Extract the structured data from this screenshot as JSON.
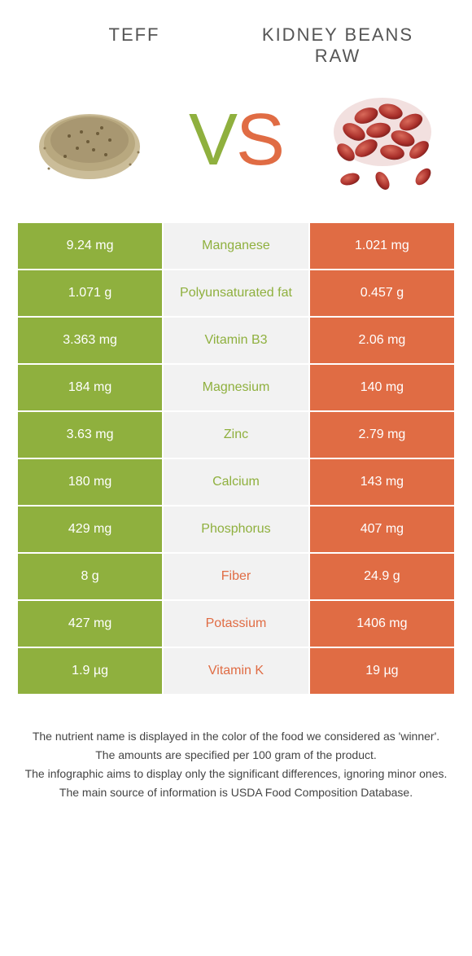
{
  "header": {
    "left_title": "TEFF",
    "right_title": "KIDNEY BEANS RAW"
  },
  "vs": {
    "v": "V",
    "s": "S"
  },
  "colors": {
    "left": "#8fb03e",
    "right": "#e06c44",
    "mid_bg": "#f2f2f2",
    "text": "#555555"
  },
  "rows": [
    {
      "nutrient": "Manganese",
      "left": "9.24 mg",
      "right": "1.021 mg",
      "winner": "left"
    },
    {
      "nutrient": "Polyunsaturated fat",
      "left": "1.071 g",
      "right": "0.457 g",
      "winner": "left"
    },
    {
      "nutrient": "Vitamin B3",
      "left": "3.363 mg",
      "right": "2.06 mg",
      "winner": "left"
    },
    {
      "nutrient": "Magnesium",
      "left": "184 mg",
      "right": "140 mg",
      "winner": "left"
    },
    {
      "nutrient": "Zinc",
      "left": "3.63 mg",
      "right": "2.79 mg",
      "winner": "left"
    },
    {
      "nutrient": "Calcium",
      "left": "180 mg",
      "right": "143 mg",
      "winner": "left"
    },
    {
      "nutrient": "Phosphorus",
      "left": "429 mg",
      "right": "407 mg",
      "winner": "left"
    },
    {
      "nutrient": "Fiber",
      "left": "8 g",
      "right": "24.9 g",
      "winner": "right"
    },
    {
      "nutrient": "Potassium",
      "left": "427 mg",
      "right": "1406 mg",
      "winner": "right"
    },
    {
      "nutrient": "Vitamin K",
      "left": "1.9 µg",
      "right": "19 µg",
      "winner": "right"
    }
  ],
  "footer": {
    "line1": "The nutrient name is displayed in the color of the food we considered as 'winner'.",
    "line2": "The amounts are specified per 100 gram of the product.",
    "line3": "The infographic aims to display only the significant differences, ignoring minor ones.",
    "line4": "The main source of information is USDA Food Composition Database."
  }
}
